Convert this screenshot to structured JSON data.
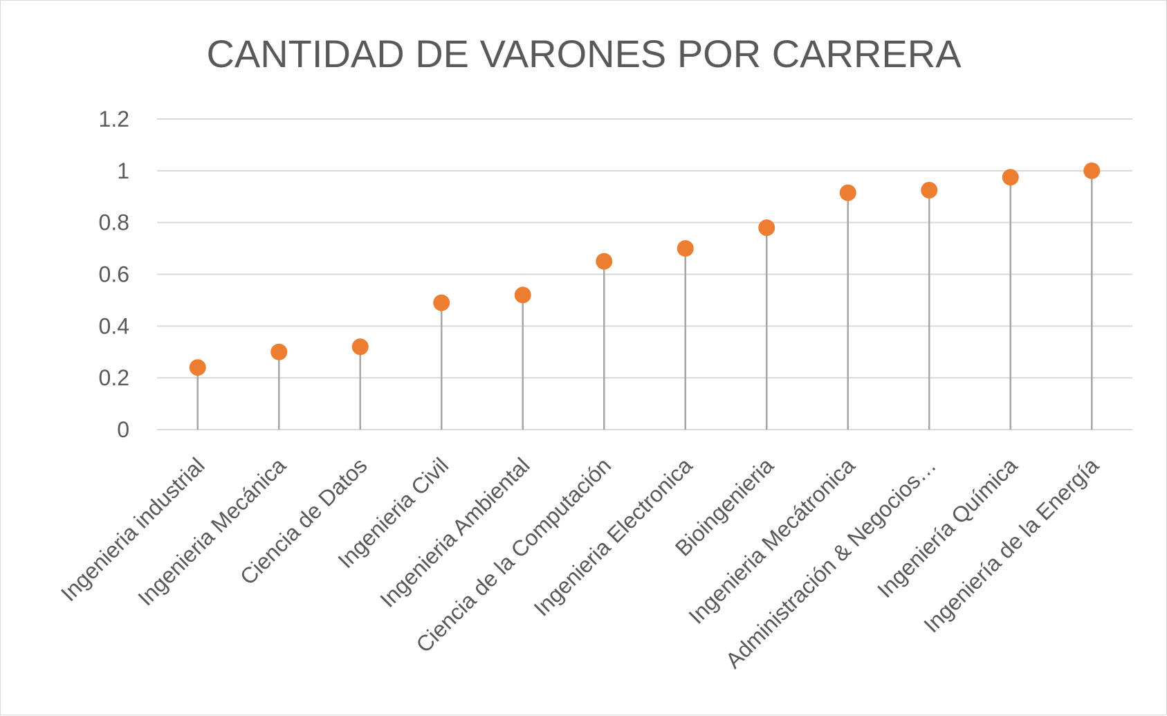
{
  "chart_data": {
    "type": "scatter",
    "title": "CANTIDAD DE VARONES POR CARRERA",
    "categories": [
      "Ingenieria industrial",
      "Ingenieria Mecánica",
      "Ciencia de Datos",
      "Ingenieria Civil",
      "Ingenieria Ambiental",
      "Ciencia de la Computación",
      "Ingenieria Electronica",
      "Bioingenieria",
      "Ingenieria Mecátronica",
      "Administración & Negocios…",
      "Ingeniería Química",
      "Ingeniería de la Energía"
    ],
    "values": [
      0.24,
      0.3,
      0.32,
      0.49,
      0.52,
      0.65,
      0.7,
      0.78,
      0.915,
      0.925,
      0.975,
      1.0
    ],
    "ylim": [
      0,
      1.2
    ],
    "yticks": [
      0,
      0.2,
      0.4,
      0.6,
      0.8,
      1,
      1.2
    ],
    "ytick_labels": [
      "0",
      "0.2",
      "0.4",
      "0.6",
      "0.8",
      "1",
      "1.2"
    ],
    "grid": true,
    "legend": "none",
    "colors": {
      "point": "#ed7d31",
      "stem": "#a6a6a6",
      "grid": "#d9d9d9",
      "text": "#595959"
    }
  }
}
